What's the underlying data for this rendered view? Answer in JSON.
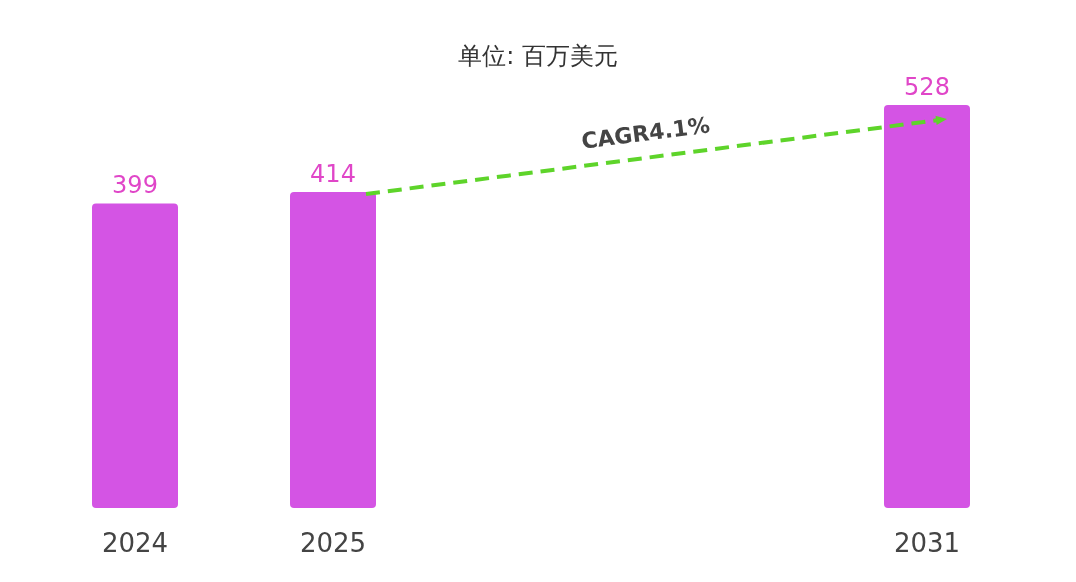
{
  "chart_data": {
    "type": "bar",
    "title": "单位: 百万美元",
    "categories": [
      "2024",
      "2025",
      null,
      null,
      "2031"
    ],
    "values": [
      399,
      414,
      null,
      null,
      528
    ],
    "color": "#d454e4",
    "data_labels": true,
    "annotations": [
      "CAGR4.1%"
    ]
  }
}
